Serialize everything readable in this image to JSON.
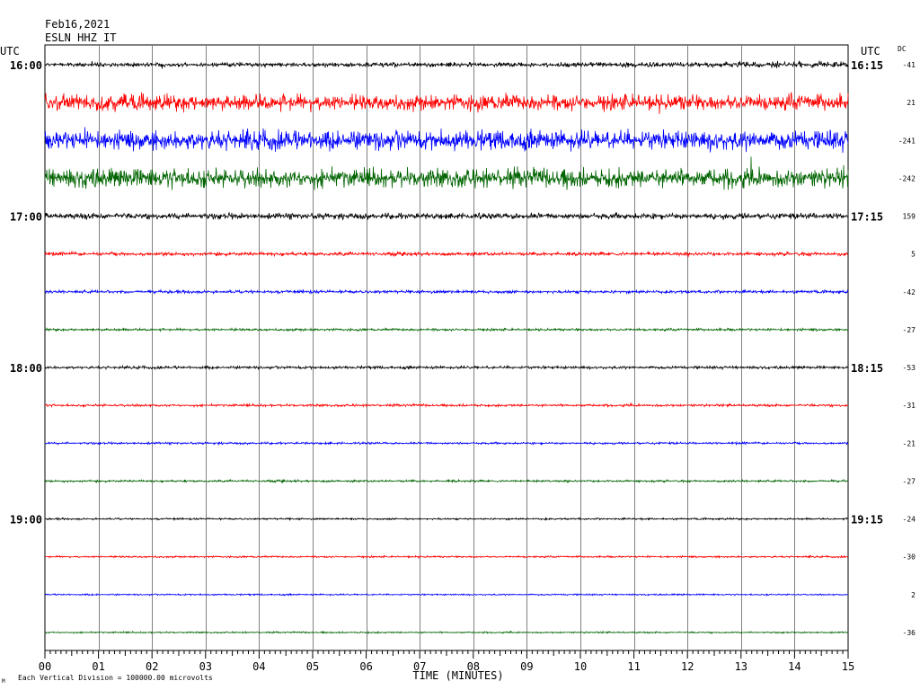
{
  "header": {
    "date": "Feb16,2021",
    "station": "ESLN HHZ IT",
    "utc_left": "UTC",
    "utc_right": "UTC",
    "dc_label": "DC"
  },
  "footer": {
    "xlabel": "TIME (MINUTES)",
    "scale_note": "Each Vertical Division = 100000.00 microvolts",
    "corner_mark": "M"
  },
  "colors": {
    "trace_cycle": [
      "#000000",
      "#ff0000",
      "#0000ff",
      "#006400"
    ],
    "grid": "#808080",
    "frame": "#000000"
  },
  "chart_data": {
    "type": "line",
    "subtype": "helicorder",
    "title": "ESLN HHZ IT",
    "date": "Feb16,2021",
    "xlabel": "TIME (MINUTES)",
    "xlim": [
      0,
      15
    ],
    "x_ticks": [
      "00",
      "01",
      "02",
      "03",
      "04",
      "05",
      "06",
      "07",
      "08",
      "09",
      "10",
      "11",
      "12",
      "13",
      "14",
      "15"
    ],
    "minutes_per_line": 15,
    "grid": true,
    "hour_labels_left": [
      {
        "line": 0,
        "label": "16:00"
      },
      {
        "line": 4,
        "label": "17:00"
      },
      {
        "line": 8,
        "label": "18:00"
      },
      {
        "line": 12,
        "label": "19:00"
      }
    ],
    "hour_labels_right": [
      {
        "line": 0,
        "label": "16:15"
      },
      {
        "line": 4,
        "label": "17:15"
      },
      {
        "line": 8,
        "label": "18:15"
      },
      {
        "line": 12,
        "label": "19:15"
      }
    ],
    "traces": [
      {
        "dc": "-41",
        "amplitude": 0.25,
        "trend": 4.0,
        "color": "#000000"
      },
      {
        "dc": "21",
        "amplitude": 0.55,
        "trend": 1.0,
        "color": "#ff0000"
      },
      {
        "dc": "-241",
        "amplitude": 0.65,
        "trend": 1.0,
        "color": "#0000ff"
      },
      {
        "dc": "-242",
        "amplitude": 0.65,
        "trend": 1.0,
        "color": "#006400"
      },
      {
        "dc": "159",
        "amplitude": 0.2,
        "trend": 0.7,
        "color": "#000000"
      },
      {
        "dc": "5",
        "amplitude": 0.12,
        "trend": 1.0,
        "color": "#ff0000"
      },
      {
        "dc": "-42",
        "amplitude": 0.1,
        "trend": 1.0,
        "color": "#0000ff"
      },
      {
        "dc": "-27",
        "amplitude": 0.08,
        "trend": 1.0,
        "color": "#006400"
      },
      {
        "dc": "-53",
        "amplitude": 0.09,
        "trend": 1.0,
        "color": "#000000"
      },
      {
        "dc": "-31",
        "amplitude": 0.08,
        "trend": 1.0,
        "color": "#ff0000"
      },
      {
        "dc": "-21",
        "amplitude": 0.07,
        "trend": 1.0,
        "color": "#0000ff"
      },
      {
        "dc": "-27",
        "amplitude": 0.07,
        "trend": 1.0,
        "color": "#006400"
      },
      {
        "dc": "-24",
        "amplitude": 0.06,
        "trend": 1.0,
        "color": "#000000"
      },
      {
        "dc": "-30",
        "amplitude": 0.06,
        "trend": 1.0,
        "color": "#ff0000"
      },
      {
        "dc": "2",
        "amplitude": 0.05,
        "trend": 1.0,
        "color": "#0000ff"
      },
      {
        "dc": "-36",
        "amplitude": 0.05,
        "trend": 1.0,
        "color": "#006400"
      }
    ]
  }
}
